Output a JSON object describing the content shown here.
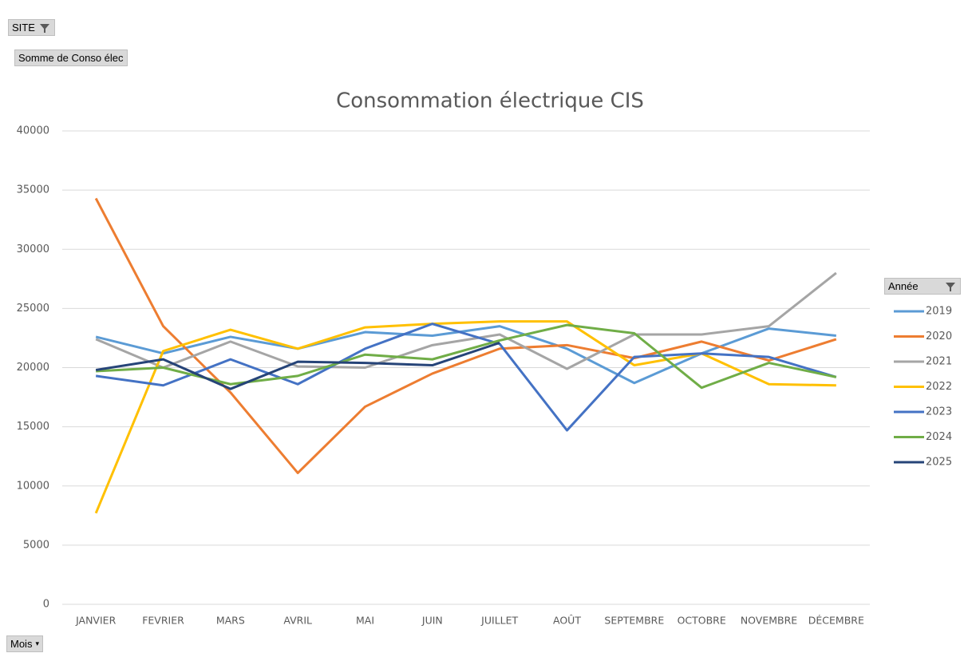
{
  "chart_data": {
    "type": "line",
    "title": "Consommation électrique CIS",
    "categories": [
      "JANVIER",
      "FEVRIER",
      "MARS",
      "AVRIL",
      "MAI",
      "JUIN",
      "JUILLET",
      "AOÛT",
      "SEPTEMBRE",
      "OCTOBRE",
      "NOVEMBRE",
      "DÉCEMBRE"
    ],
    "ylim": [
      0,
      40000
    ],
    "yticks": [
      0,
      5000,
      10000,
      15000,
      20000,
      25000,
      30000,
      35000,
      40000
    ],
    "grid": true,
    "legend_title": "Année",
    "legend": "right",
    "series": [
      {
        "name": "2019",
        "color": "#5b9bd5",
        "values": [
          22600,
          21200,
          22600,
          21600,
          23000,
          22700,
          23500,
          21600,
          18700,
          21200,
          23300,
          22700
        ]
      },
      {
        "name": "2020",
        "color": "#ed7d31",
        "values": [
          34300,
          23500,
          17900,
          11100,
          16700,
          19500,
          21600,
          21900,
          20800,
          22200,
          20600,
          22400
        ]
      },
      {
        "name": "2021",
        "color": "#a5a5a5",
        "values": [
          22400,
          20000,
          22200,
          20100,
          20000,
          21900,
          22800,
          19900,
          22800,
          22800,
          23500,
          28000
        ]
      },
      {
        "name": "2022",
        "color": "#ffc000",
        "values": [
          7700,
          21400,
          23200,
          21600,
          23400,
          23700,
          23900,
          23900,
          20200,
          21200,
          18600,
          18500
        ]
      },
      {
        "name": "2023",
        "color": "#4472c4",
        "values": [
          19300,
          18500,
          20700,
          18600,
          21600,
          23700,
          22000,
          14700,
          20900,
          21200,
          20900,
          19200
        ]
      },
      {
        "name": "2024",
        "color": "#70ad47",
        "values": [
          19700,
          20000,
          18600,
          19300,
          21100,
          20700,
          22300,
          23600,
          22900,
          18300,
          20400,
          19200
        ]
      },
      {
        "name": "2025",
        "color": "#264478",
        "values": [
          19800,
          20700,
          18200,
          20500,
          20400,
          20200,
          22100,
          null,
          null,
          null,
          null,
          null
        ]
      }
    ]
  },
  "pivot": {
    "report_filter": "SITE",
    "value_field": "Somme de Conso élec",
    "axis_field": "Mois"
  }
}
